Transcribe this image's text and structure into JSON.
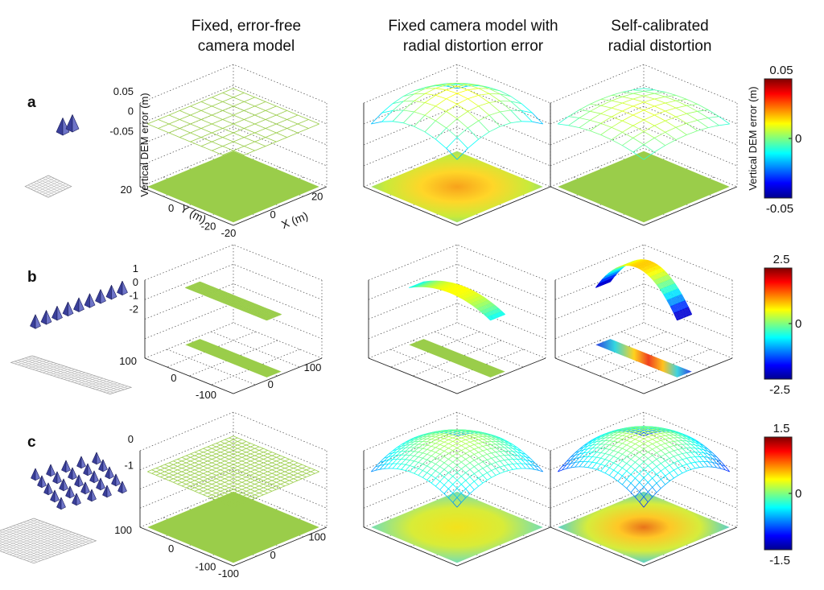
{
  "column_headers": [
    [
      "Fixed, error-free",
      "camera model"
    ],
    [
      "Fixed camera model with",
      "radial distortion error"
    ],
    [
      "Self-calibrated",
      "radial distortion"
    ]
  ],
  "rows": [
    {
      "label": "a",
      "cameras": 2,
      "colorbar": {
        "max_label": "0.05",
        "mid_label": "0",
        "min_label": "-0.05",
        "range": [
          -0.05,
          0.05
        ],
        "title": "Vertical DEM error (m)"
      },
      "z_ticks": [
        "0.05",
        "0",
        "-0.05"
      ],
      "y_ticks": [
        "20",
        "0",
        "-20"
      ],
      "x_ticks": [
        "-20",
        "0",
        "20"
      ],
      "z_label": "Vertical DEM error (m)",
      "y_label": "Y (m)",
      "x_label": "X (m)"
    },
    {
      "label": "b",
      "cameras": 9,
      "colorbar": {
        "max_label": "2.5",
        "mid_label": "0",
        "min_label": "-2.5",
        "range": [
          -2.5,
          2.5
        ]
      },
      "z_ticks": [
        "1",
        "0",
        "-1",
        "-2"
      ],
      "y_ticks": [
        "100",
        "0",
        "-100"
      ],
      "x_ticks": [
        "0",
        "100"
      ]
    },
    {
      "label": "c",
      "cameras": 25,
      "colorbar": {
        "max_label": "1.5",
        "mid_label": "0",
        "min_label": "-1.5",
        "range": [
          -1.5,
          1.5
        ]
      },
      "z_ticks": [
        "0",
        "-1"
      ],
      "y_ticks": [
        "100",
        "0",
        "-100"
      ],
      "x_ticks": [
        "-100",
        "0",
        "100"
      ]
    }
  ],
  "colors": {
    "camera": "#3a3f9a",
    "jet_low": "#00008f",
    "jet_high": "#800000",
    "flat_surface": "#9acd4a"
  },
  "chart_data": {
    "type": "surface-3d-grid",
    "description_rows": [
      "a",
      "b",
      "c"
    ],
    "panels": [
      {
        "row": "a",
        "col": 1,
        "peak_error": 0.0,
        "note": "flat"
      },
      {
        "row": "a",
        "col": 2,
        "peak_error": 0.03,
        "note": "dome"
      },
      {
        "row": "a",
        "col": 3,
        "peak_error": 0.015,
        "note": "slight dome"
      },
      {
        "row": "b",
        "col": 1,
        "peak_error": 0.0,
        "note": "flat strip"
      },
      {
        "row": "b",
        "col": 2,
        "peak_error": 0.4,
        "note": "shallow arc"
      },
      {
        "row": "b",
        "col": 3,
        "peak_error": 2.2,
        "note": "strong arc"
      },
      {
        "row": "c",
        "col": 1,
        "peak_error": 0.0,
        "note": "flat"
      },
      {
        "row": "c",
        "col": 2,
        "peak_error": 0.6,
        "note": "dome"
      },
      {
        "row": "c",
        "col": 3,
        "peak_error": 1.2,
        "note": "strong dome"
      }
    ]
  }
}
